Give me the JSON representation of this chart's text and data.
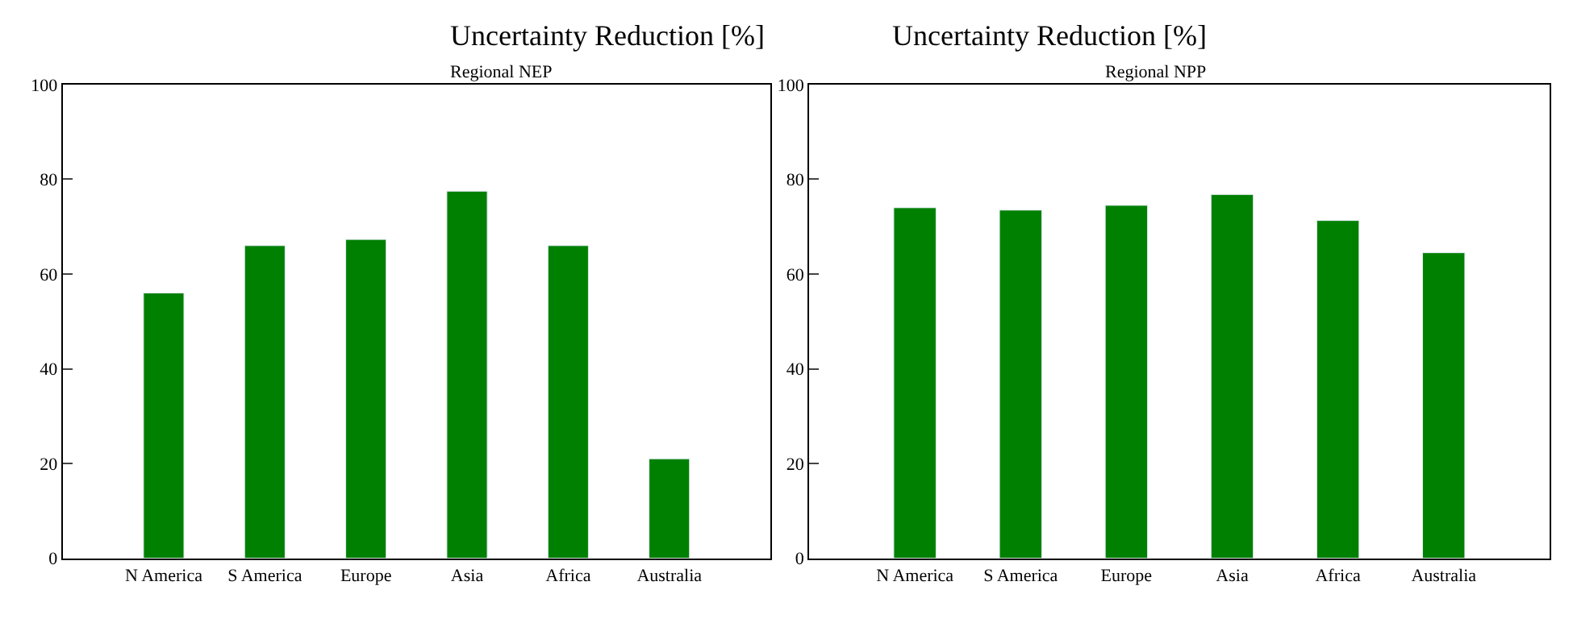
{
  "chart_data": [
    {
      "type": "bar",
      "title": "Uncertainty Reduction [%]",
      "subtitle": "Regional NEP",
      "categories": [
        "N America",
        "S America",
        "Europe",
        "Asia",
        "Africa",
        "Australia"
      ],
      "values": [
        56,
        66,
        67.3,
        77.5,
        66,
        21
      ],
      "color": "#008000",
      "ylim": [
        0,
        100
      ],
      "yticks": [
        0,
        20,
        40,
        60,
        80,
        100
      ]
    },
    {
      "type": "bar",
      "title": "Uncertainty Reduction [%]",
      "subtitle": "Regional NPP",
      "categories": [
        "N America",
        "S America",
        "Europe",
        "Asia",
        "Africa",
        "Australia"
      ],
      "values": [
        74,
        73.5,
        74.5,
        76.8,
        71.3,
        64.5
      ],
      "color": "#008000",
      "ylim": [
        0,
        100
      ],
      "yticks": [
        0,
        20,
        40,
        60,
        80,
        100
      ]
    }
  ]
}
